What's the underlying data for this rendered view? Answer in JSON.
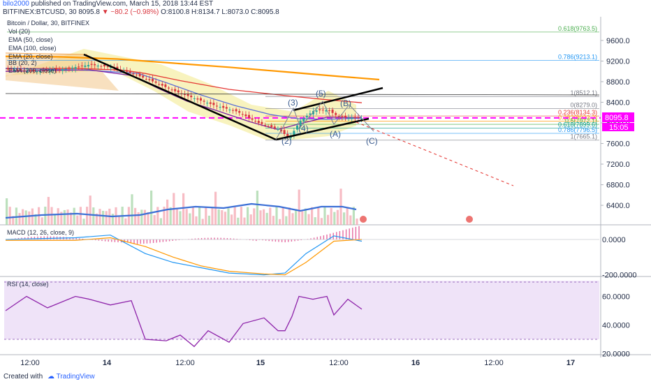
{
  "header": {
    "user": "bilo2000",
    "published_text": "published on TradingView.com, March 15, 2018 13:44 EST",
    "symbol_line": "BITFINEX:BTCUSD, 30",
    "last": "8095.8",
    "change": "▼ −80.2 (−0.98%)",
    "ohlc": "O:8100.8 H:8134.7 L:8073.0 C:8095.8"
  },
  "legend": {
    "title": "Bitcoin / Dollar, 30, BITFINEX",
    "items": [
      "Vol (20)",
      "EMA (50, close)",
      "EMA (100, close)",
      "EMA (20, close)",
      "BB (20, 2)",
      "EMA (200, close)"
    ]
  },
  "main_axis": {
    "ticks": [
      "9600.0",
      "9200.0",
      "8800.0",
      "8400.0",
      "8000.0",
      "7600.0",
      "7200.0",
      "6800.0",
      "6400.0"
    ]
  },
  "price_label": "8095.8",
  "countdown_label": "15:05",
  "fib_levels": [
    {
      "label": "0.618(9763.5)",
      "color": "#4caf50"
    },
    {
      "label": "0.786(9213.1)",
      "color": "#2196f3"
    },
    {
      "label": "1(8512.1)",
      "color": "#787b86"
    },
    {
      "label": "0(8279.0)",
      "color": "#787b86"
    },
    {
      "label": "0.236(8134.3)",
      "color": "#e53935"
    },
    {
      "label": "0.382(8033.2)",
      "color": "#ff9800"
    },
    {
      "label": "0.5(7972.1)",
      "color": "#4caf50"
    },
    {
      "label": "0.618(7899.6)",
      "color": "#009688"
    },
    {
      "label": "0.786(7796.5)",
      "color": "#2196f3"
    },
    {
      "label": "1(7665.1)",
      "color": "#787b86"
    }
  ],
  "wave_labels": [
    "(2)",
    "(3)",
    "(4)",
    "(5)",
    "(A)",
    "(B)",
    "(C)"
  ],
  "macd": {
    "title": "MACD (12, 26, close, 9)",
    "ticks": [
      "0.0000",
      "-200.0000"
    ]
  },
  "rsi": {
    "title": "RSI (14, close)",
    "ticks": [
      "60.0000",
      "40.0000",
      "20.0000"
    ]
  },
  "time_axis": {
    "labels": [
      "12:00",
      "14",
      "12:00",
      "15",
      "12:00",
      "16",
      "12:00",
      "17"
    ]
  },
  "footer": {
    "created": "Created with",
    "brand": "TradingView"
  },
  "chart_data": {
    "type": "line",
    "title": "Bitcoin / Dollar, 30, BITFINEX",
    "x_labels": [
      "12:00",
      "14",
      "12:00",
      "15",
      "12:00",
      "16",
      "12:00",
      "17"
    ],
    "ylim": [
      6100,
      9950
    ],
    "series": [
      {
        "name": "EMA (200, close)",
        "color": "#ff9800",
        "points": [
          [
            0,
            9290
          ],
          [
            80,
            9280
          ],
          [
            160,
            9240
          ],
          [
            240,
            9160
          ],
          [
            320,
            9080
          ],
          [
            400,
            8990
          ],
          [
            480,
            8900
          ],
          [
            535,
            8840
          ]
        ]
      },
      {
        "name": "EMA (100, close)",
        "color": "#e53935",
        "points": [
          [
            0,
            9050
          ],
          [
            100,
            9060
          ],
          [
            170,
            9020
          ],
          [
            200,
            8960
          ],
          [
            250,
            8820
          ],
          [
            320,
            8650
          ],
          [
            400,
            8530
          ],
          [
            460,
            8450
          ],
          [
            510,
            8390
          ]
        ]
      },
      {
        "name": "EMA (50, close)",
        "color": "#5b6fd6",
        "points": [
          [
            0,
            9060
          ],
          [
            120,
            9020
          ],
          [
            190,
            8960
          ],
          [
            230,
            8780
          ],
          [
            280,
            8540
          ],
          [
            330,
            8330
          ],
          [
            380,
            8160
          ],
          [
            420,
            8080
          ],
          [
            460,
            8070
          ],
          [
            510,
            8090
          ]
        ]
      },
      {
        "name": "EMA (20, close)",
        "color": "#7b1fa2",
        "points": [
          [
            0,
            9000
          ],
          [
            120,
            9030
          ],
          [
            180,
            8920
          ],
          [
            220,
            8660
          ],
          [
            260,
            8420
          ],
          [
            300,
            8250
          ],
          [
            350,
            8020
          ],
          [
            390,
            7870
          ],
          [
            420,
            7980
          ],
          [
            460,
            8110
          ],
          [
            510,
            8100
          ]
        ]
      },
      {
        "name": "BTCUSD",
        "color": "#26a69a",
        "points": [
          [
            0,
            9040
          ],
          [
            40,
            9000
          ],
          [
            80,
            9040
          ],
          [
            120,
            9130
          ],
          [
            150,
            9080
          ],
          [
            180,
            8960
          ],
          [
            210,
            8800
          ],
          [
            240,
            8620
          ],
          [
            270,
            8470
          ],
          [
            300,
            8330
          ],
          [
            330,
            8220
          ],
          [
            360,
            8000
          ],
          [
            390,
            7870
          ],
          [
            405,
            7700
          ],
          [
            420,
            8040
          ],
          [
            440,
            8240
          ],
          [
            460,
            8250
          ],
          [
            475,
            8120
          ],
          [
            490,
            8100
          ],
          [
            510,
            8095
          ]
        ]
      }
    ],
    "macd": {
      "ylim": [
        -240,
        60
      ],
      "macd_line": [
        [
          0,
          0
        ],
        [
          100,
          10
        ],
        [
          150,
          25
        ],
        [
          200,
          -80
        ],
        [
          240,
          -130
        ],
        [
          280,
          -160
        ],
        [
          320,
          -190
        ],
        [
          370,
          -200
        ],
        [
          400,
          -190
        ],
        [
          430,
          -80
        ],
        [
          470,
          20
        ],
        [
          510,
          -10
        ]
      ],
      "signal_line": [
        [
          0,
          -5
        ],
        [
          100,
          -5
        ],
        [
          150,
          10
        ],
        [
          200,
          -40
        ],
        [
          240,
          -100
        ],
        [
          280,
          -150
        ],
        [
          320,
          -180
        ],
        [
          370,
          -195
        ],
        [
          400,
          -200
        ],
        [
          430,
          -130
        ],
        [
          470,
          -10
        ],
        [
          510,
          0
        ]
      ]
    },
    "rsi": {
      "ylim": [
        18,
        72
      ],
      "overbought": 70,
      "oversold": 30,
      "values": [
        [
          0,
          50
        ],
        [
          30,
          60
        ],
        [
          60,
          52
        ],
        [
          100,
          60
        ],
        [
          120,
          58
        ],
        [
          150,
          54
        ],
        [
          180,
          57
        ],
        [
          200,
          30
        ],
        [
          230,
          29
        ],
        [
          250,
          33
        ],
        [
          270,
          25
        ],
        [
          290,
          36
        ],
        [
          320,
          28
        ],
        [
          340,
          41
        ],
        [
          370,
          45
        ],
        [
          390,
          36
        ],
        [
          400,
          36
        ],
        [
          410,
          46
        ],
        [
          420,
          60
        ],
        [
          440,
          58
        ],
        [
          460,
          60
        ],
        [
          470,
          47
        ],
        [
          490,
          58
        ],
        [
          510,
          51
        ]
      ]
    }
  }
}
